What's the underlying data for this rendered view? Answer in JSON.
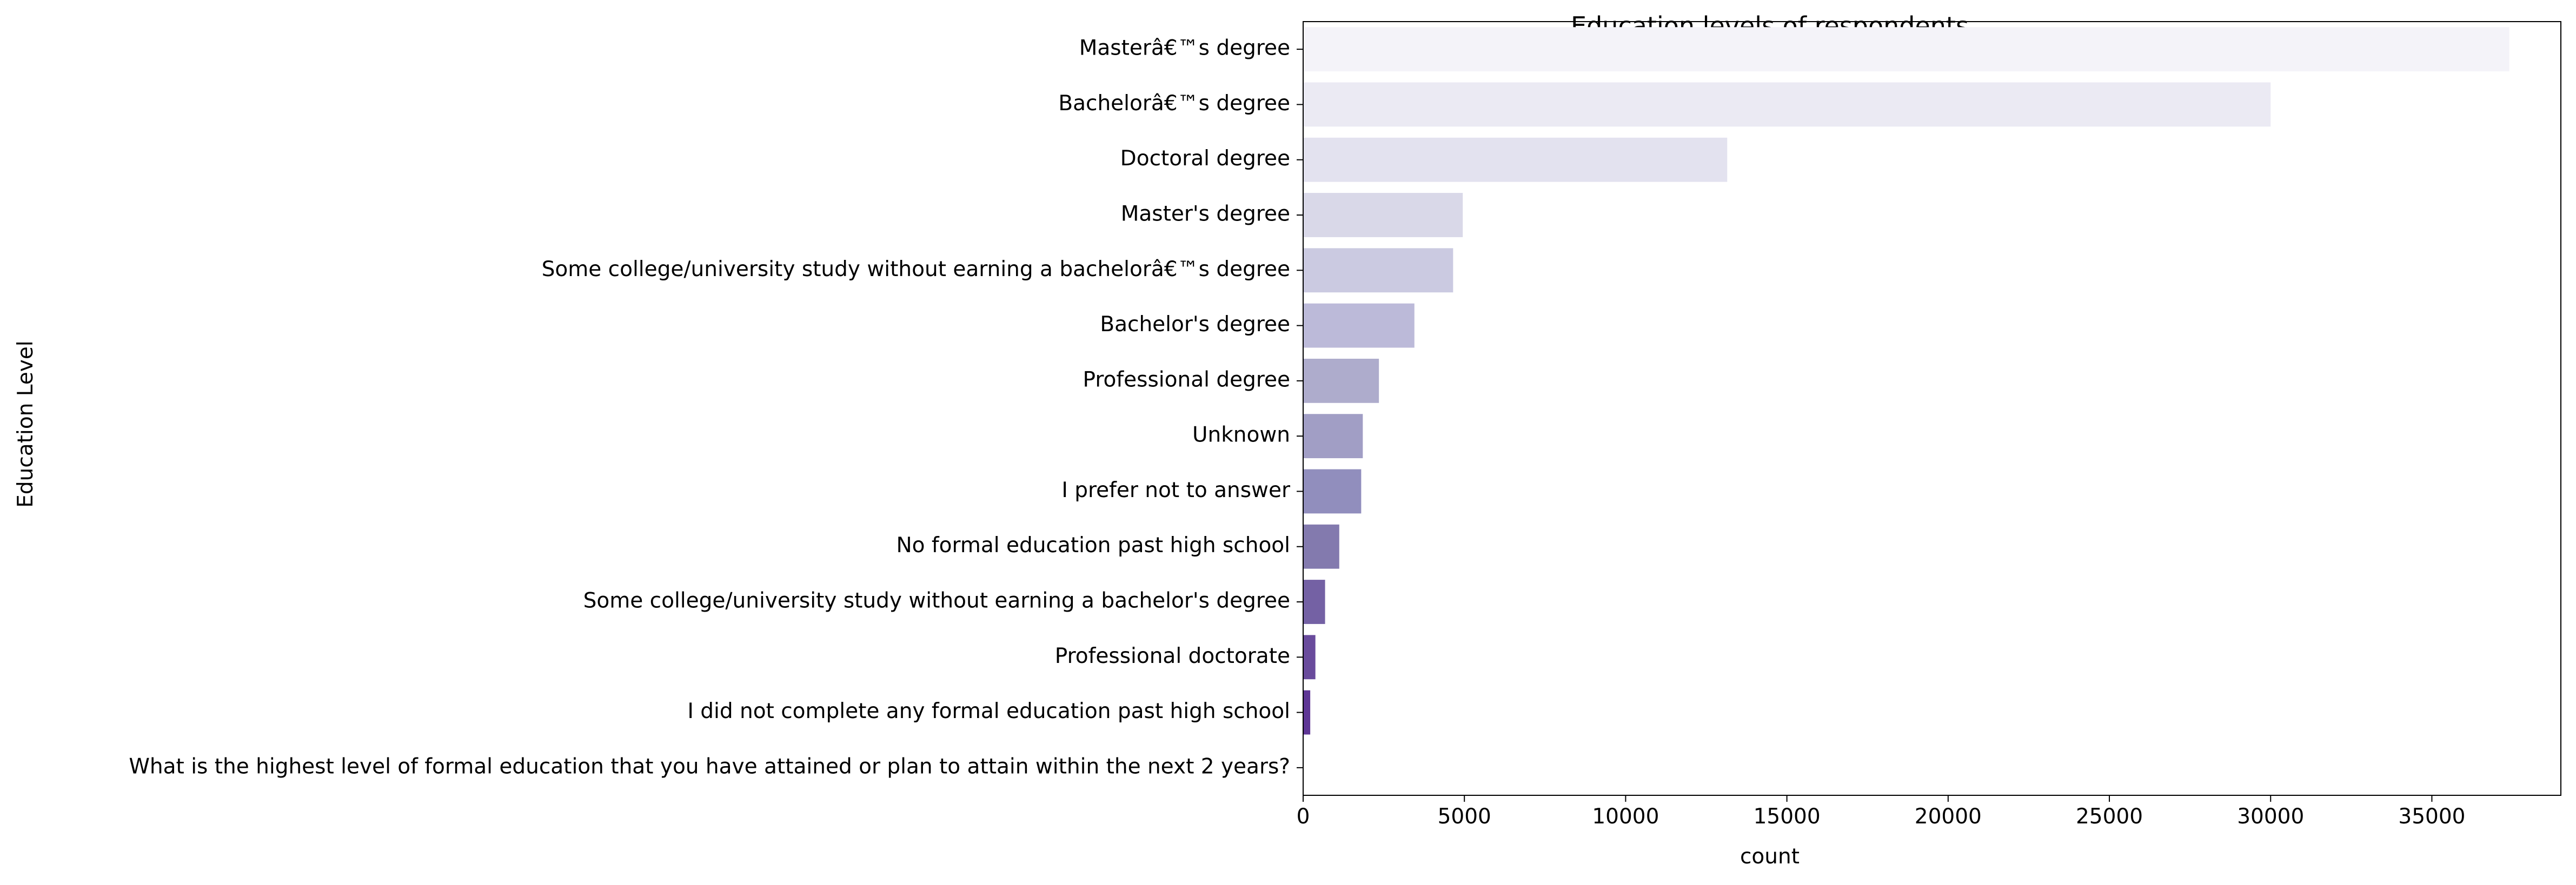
{
  "chart_data": {
    "type": "bar",
    "orientation": "horizontal",
    "title": "Education levels of respondents",
    "xlabel": "count",
    "ylabel": "Education Level",
    "categories": [
      "Masterâ€™s degree",
      "Bachelorâ€™s degree",
      "Doctoral degree",
      "Master's degree",
      "Some college/university study without earning a bachelorâ€™s degree",
      "Bachelor's degree",
      "Professional degree",
      "Unknown",
      "I prefer not to answer",
      "No formal education past high school",
      "Some college/university study without earning a bachelor's degree",
      "Professional doctorate",
      "I did not complete any formal education past high school",
      "What is the highest level of formal education that you have attained or plan to attain within the next 2 years?"
    ],
    "values": [
      37400,
      30000,
      13150,
      4950,
      4650,
      3450,
      2350,
      1850,
      1800,
      1120,
      680,
      380,
      220,
      1
    ],
    "xlim": [
      0,
      39000
    ],
    "xticks": [
      "0",
      "5000",
      "10000",
      "15000",
      "20000",
      "25000",
      "30000",
      "35000"
    ],
    "colors": [
      "#f4f3f9",
      "#ebeaf3",
      "#e3e2ef",
      "#d9d8e8",
      "#cbcae1",
      "#bcbad9",
      "#aeaccc",
      "#a19ec5",
      "#918ebd",
      "#837aae",
      "#7461a4",
      "#694b9c",
      "#5e3695",
      "#542390"
    ],
    "grid": false,
    "legend": "none"
  }
}
